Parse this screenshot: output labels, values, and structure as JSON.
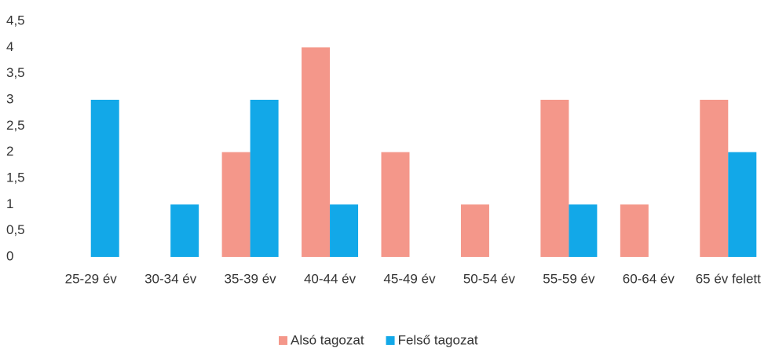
{
  "chart_data": {
    "type": "bar",
    "categories": [
      "25-29 év",
      "30-34 év",
      "35-39 év",
      "40-44 év",
      "45-49 év",
      "50-54 év",
      "55-59 év",
      "60-64 év",
      "65 év felett"
    ],
    "series": [
      {
        "name": "Alsó tagozat",
        "color": "#f4978a",
        "values": [
          0,
          0,
          2,
          4,
          2,
          1,
          3,
          1,
          3
        ]
      },
      {
        "name": "Felső tagozat",
        "color": "#12a8e8",
        "values": [
          3,
          1,
          3,
          1,
          0,
          0,
          1,
          0,
          2
        ]
      }
    ],
    "ylim": [
      0,
      4.5
    ],
    "yticks": [
      0,
      {
        "value": 0.5,
        "label": "0,5"
      },
      1,
      {
        "value": 1.5,
        "label": "1,5"
      },
      2,
      {
        "value": 2.5,
        "label": "2,5"
      },
      3,
      {
        "value": 3.5,
        "label": "3,5"
      },
      4,
      {
        "value": 4.5,
        "label": "4,5"
      }
    ],
    "grid": false,
    "legend": "bottom"
  }
}
